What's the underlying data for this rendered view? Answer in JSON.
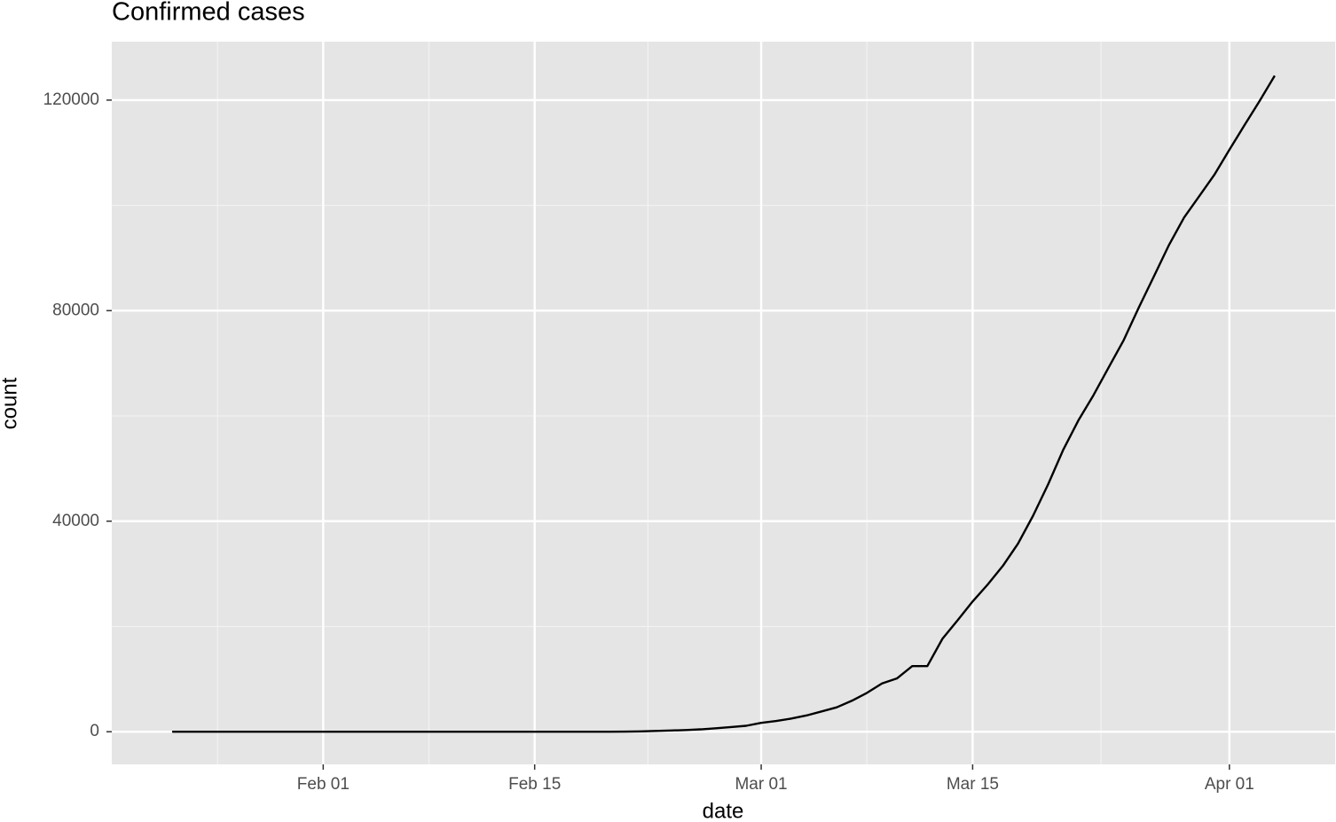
{
  "chart_data": {
    "type": "line",
    "title": "Confirmed cases",
    "x_label": "date",
    "y_label": "count",
    "x": [
      "Jan 22",
      "Jan 23",
      "Jan 24",
      "Jan 25",
      "Jan 26",
      "Jan 27",
      "Jan 28",
      "Jan 29",
      "Jan 30",
      "Jan 31",
      "Feb 01",
      "Feb 02",
      "Feb 03",
      "Feb 04",
      "Feb 05",
      "Feb 06",
      "Feb 07",
      "Feb 08",
      "Feb 09",
      "Feb 10",
      "Feb 11",
      "Feb 12",
      "Feb 13",
      "Feb 14",
      "Feb 15",
      "Feb 16",
      "Feb 17",
      "Feb 18",
      "Feb 19",
      "Feb 20",
      "Feb 21",
      "Feb 22",
      "Feb 23",
      "Feb 24",
      "Feb 25",
      "Feb 26",
      "Feb 27",
      "Feb 28",
      "Feb 29",
      "Mar 01",
      "Mar 02",
      "Mar 03",
      "Mar 04",
      "Mar 05",
      "Mar 06",
      "Mar 07",
      "Mar 08",
      "Mar 09",
      "Mar 10",
      "Mar 11",
      "Mar 12",
      "Mar 13",
      "Mar 14",
      "Mar 15",
      "Mar 16",
      "Mar 17",
      "Mar 18",
      "Mar 19",
      "Mar 20",
      "Mar 21",
      "Mar 22",
      "Mar 23",
      "Mar 24",
      "Mar 25",
      "Mar 26",
      "Mar 27",
      "Mar 28",
      "Mar 29",
      "Mar 30",
      "Mar 31",
      "Apr 01",
      "Apr 02",
      "Apr 03",
      "Apr 04"
    ],
    "series": [
      {
        "name": "count",
        "color": "#000000",
        "values": [
          0,
          0,
          0,
          0,
          0,
          0,
          0,
          0,
          0,
          2,
          2,
          2,
          2,
          2,
          2,
          2,
          3,
          3,
          3,
          3,
          3,
          3,
          3,
          3,
          3,
          3,
          3,
          3,
          3,
          3,
          20,
          62,
          155,
          229,
          322,
          453,
          655,
          888,
          1128,
          1694,
          2036,
          2502,
          3089,
          3858,
          4636,
          5883,
          7375,
          9172,
          10149,
          12462,
          12462,
          17660,
          21157,
          24747,
          27980,
          31506,
          35713,
          41035,
          47021,
          53578,
          59138,
          63927,
          69176,
          74386,
          80589,
          86498,
          92472,
          97689,
          101739,
          105792,
          110574,
          115242,
          119827,
          124632
        ]
      }
    ],
    "xlim": [
      "Jan 18",
      "Apr 08"
    ],
    "xticks": [
      "Feb 01",
      "Feb 15",
      "Mar 01",
      "Mar 15",
      "Apr 01"
    ],
    "ylim": [
      -6200,
      131100
    ],
    "yticks": [
      0,
      40000,
      80000,
      120000
    ],
    "grid": true
  }
}
